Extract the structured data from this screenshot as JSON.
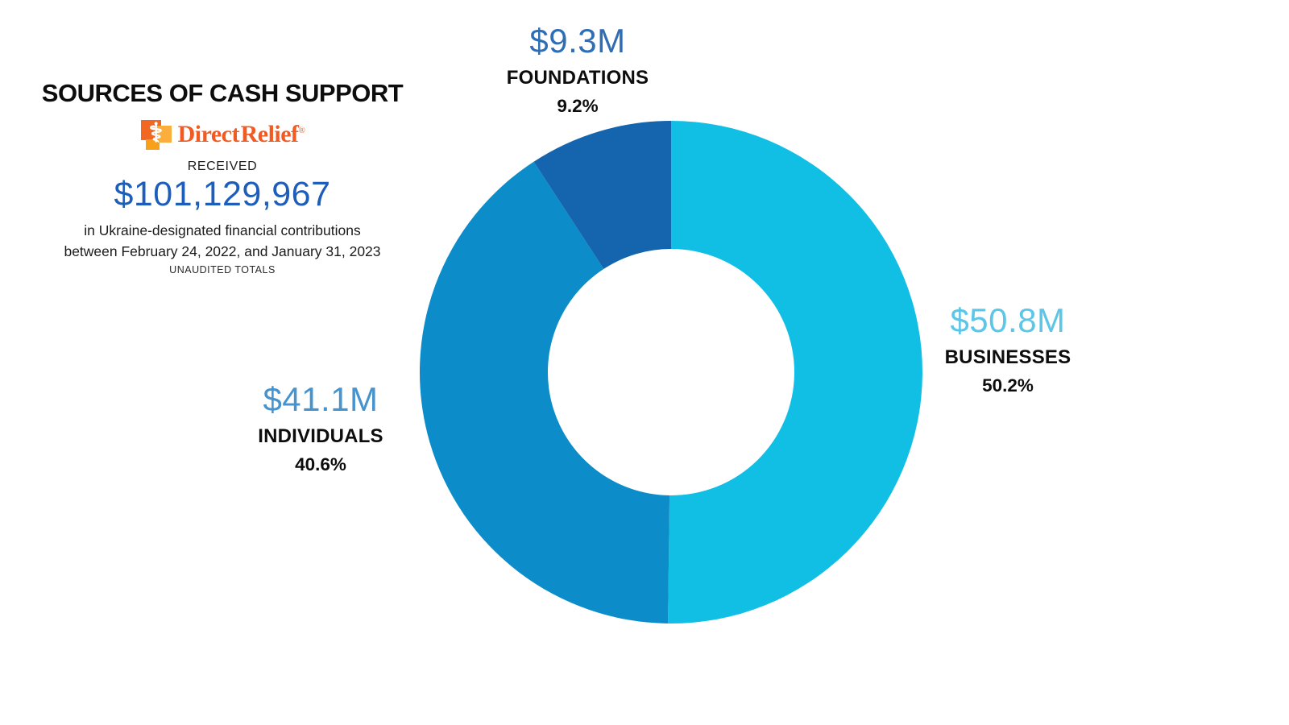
{
  "header": {
    "title": "SOURCES OF CASH SUPPORT",
    "logo": {
      "brand": "Direct Relief",
      "registered_mark": "®",
      "icon": "direct-relief-emblem-icon",
      "brand_color": "#F15A22"
    },
    "received_label": "RECEIVED",
    "total_amount": "$101,129,967",
    "amount_color": "#1E5EBB",
    "description_line1": "in Ukraine-designated financial contributions",
    "description_line2": "between February 24, 2022, and January 31, 2023",
    "footnote": "UNAUDITED TOTALS"
  },
  "chart_data": {
    "type": "pie",
    "subtype": "donut",
    "title": "Sources of Cash Support",
    "total_label": "$101,129,967",
    "categories": [
      "BUSINESSES",
      "INDIVIDUALS",
      "FOUNDATIONS"
    ],
    "values_pct": [
      50.2,
      40.6,
      9.2
    ],
    "values_usd_millions": [
      50.8,
      41.1,
      9.3
    ],
    "start_angle_deg": 0,
    "direction": "clockwise",
    "legend_position": "labels-around-chart",
    "slices": [
      {
        "name": "BUSINESSES",
        "value_label": "$50.8M",
        "pct": "50.2%",
        "pct_value": 50.2,
        "color": "#10BFE3",
        "label_color": "#5BC6E8"
      },
      {
        "name": "INDIVIDUALS",
        "value_label": "$41.1M",
        "pct": "40.6%",
        "pct_value": 40.6,
        "color": "#0C8CC9",
        "label_color": "#4693CE"
      },
      {
        "name": "FOUNDATIONS",
        "value_label": "$9.3M",
        "pct": "9.2%",
        "pct_value": 9.2,
        "color": "#1565AE",
        "label_color": "#2F6EB5"
      }
    ]
  }
}
